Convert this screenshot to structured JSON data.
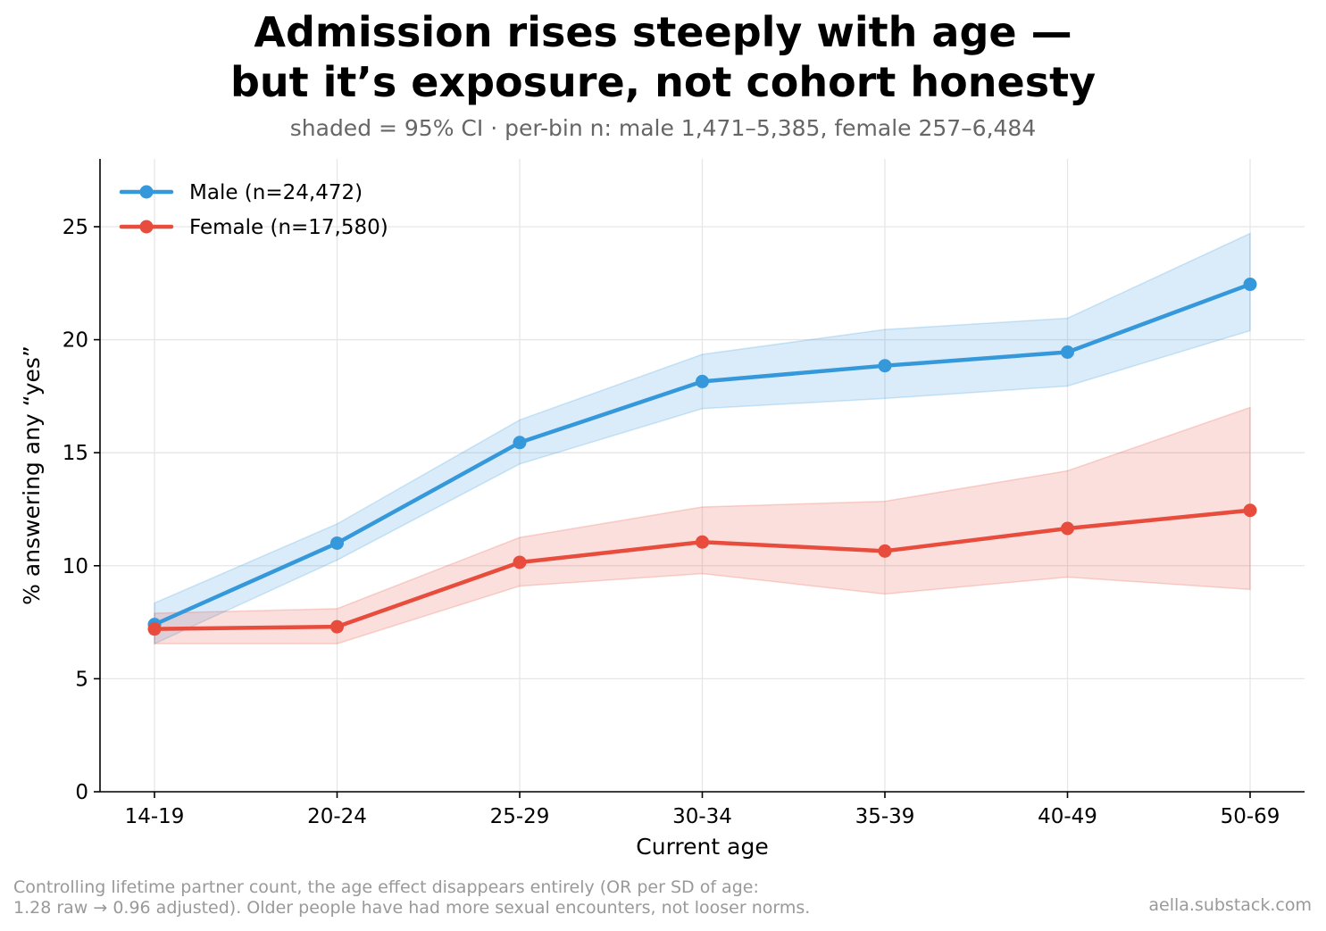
{
  "title_line1": "Admission rises steeply with age —",
  "title_line2": "but it’s exposure, not cohort honesty",
  "subtitle": "shaded = 95% CI · per-bin n: male 1,471–5,385, female 257–6,484",
  "footnote_line1": "Controlling lifetime partner count, the age effect disappears entirely (OR per SD of age:",
  "footnote_line2": "1.28 raw → 0.96 adjusted). Older people have had more sexual encounters, not looser norms.",
  "credit": "aella.substack.com",
  "chart_data": {
    "type": "line",
    "xlabel": "Current age",
    "ylabel": "% answering any “yes”",
    "categories": [
      "14-19",
      "20-24",
      "25-29",
      "30-34",
      "35-39",
      "40-49",
      "50-69"
    ],
    "ylim": [
      0,
      28
    ],
    "yticks": [
      0,
      5,
      10,
      15,
      20,
      25
    ],
    "grid": true,
    "legend_position": "top-left",
    "series": [
      {
        "name": "Male (n=24,472)",
        "color": "#3498db",
        "values": [
          7.4,
          11.0,
          15.45,
          18.15,
          18.85,
          19.45,
          22.45
        ],
        "ci_low": [
          6.55,
          10.25,
          14.5,
          16.95,
          17.4,
          17.95,
          20.4
        ],
        "ci_high": [
          8.35,
          11.85,
          16.45,
          19.35,
          20.45,
          20.95,
          24.7
        ]
      },
      {
        "name": "Female (n=17,580)",
        "color": "#e74c3c",
        "values": [
          7.2,
          7.3,
          10.15,
          11.05,
          10.65,
          11.65,
          12.45
        ],
        "ci_low": [
          6.55,
          6.55,
          9.1,
          9.65,
          8.75,
          9.5,
          8.95
        ],
        "ci_high": [
          7.9,
          8.1,
          11.25,
          12.6,
          12.85,
          14.2,
          17.0
        ]
      }
    ]
  }
}
